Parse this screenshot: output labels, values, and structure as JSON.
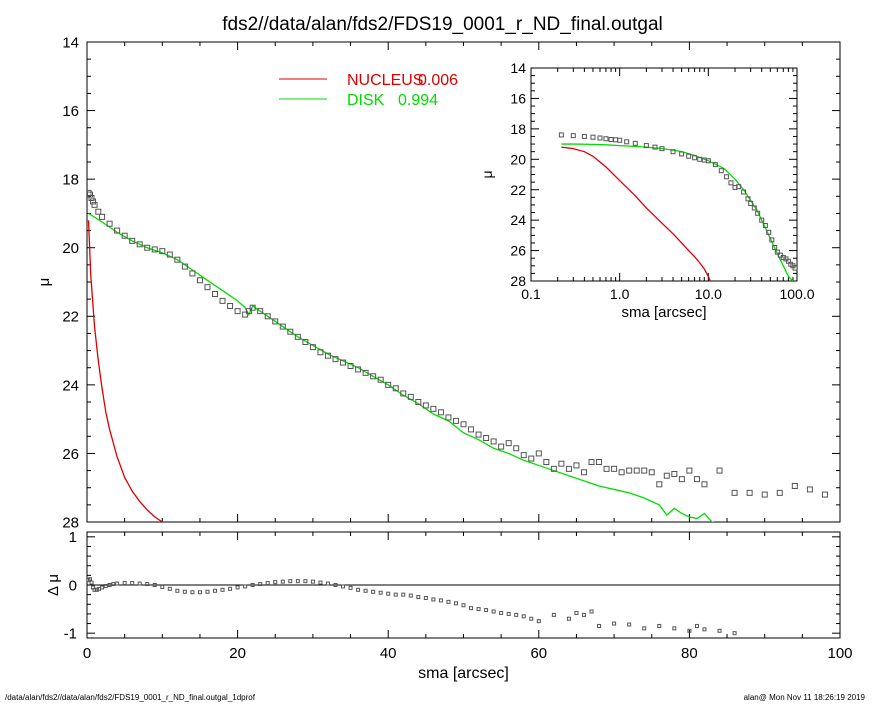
{
  "title": "fds2//data/alan/fds2/FDS19_0001_r_ND_final.outgal",
  "footer": {
    "left": "/data/alan/fds2//data/alan/fds2/FDS19_0001_r_ND_final.outgal_1dprof",
    "right": "alan@  Mon Nov 11 18:26:19 2019"
  },
  "colors": {
    "nucleus": "#dd0000",
    "disk": "#00dd00",
    "data": "#555555",
    "axis": "#000000"
  },
  "chart_data": [
    {
      "id": "main",
      "type": "line",
      "ylabel": "μ",
      "xlabel": "",
      "xlim": [
        0,
        100
      ],
      "ylim": [
        28,
        14
      ],
      "yticks": [
        14,
        16,
        18,
        20,
        22,
        24,
        26,
        28
      ],
      "legend": {
        "placement": "top-center",
        "items": [
          {
            "label": "NUCLEUS",
            "value": "0.006",
            "color": "#dd0000"
          },
          {
            "label": "DISK",
            "value": "0.994",
            "color": "#00dd00"
          }
        ]
      },
      "series": [
        {
          "name": "NUCLEUS",
          "style": "line",
          "color": "#dd0000",
          "x": [
            0.2,
            0.5,
            1,
            1.5,
            2,
            2.5,
            3,
            4,
            5,
            6,
            7,
            8,
            9,
            10,
            10.5
          ],
          "y": [
            19.2,
            20.8,
            22.3,
            23.3,
            24.1,
            24.8,
            25.3,
            26.1,
            26.7,
            27.1,
            27.4,
            27.65,
            27.85,
            28.0,
            28.05
          ]
        },
        {
          "name": "DISK",
          "style": "line",
          "color": "#00dd00",
          "x": [
            0.2,
            2,
            4,
            6,
            8,
            10,
            12,
            14,
            16,
            18,
            20,
            21,
            21.5,
            22,
            24,
            26,
            28,
            30,
            32,
            34,
            36,
            38,
            40,
            42,
            44,
            46,
            48,
            50,
            52,
            54,
            56,
            58,
            60,
            62,
            64,
            66,
            68,
            70,
            72,
            74,
            76,
            77,
            78,
            79,
            80,
            81,
            82,
            83,
            84
          ],
          "y": [
            19.0,
            19.25,
            19.55,
            19.8,
            20.0,
            20.15,
            20.35,
            20.65,
            20.95,
            21.25,
            21.55,
            21.75,
            21.95,
            21.7,
            22.0,
            22.3,
            22.6,
            22.85,
            23.1,
            23.3,
            23.5,
            23.75,
            24.0,
            24.3,
            24.55,
            24.85,
            25.05,
            25.4,
            25.6,
            25.85,
            26.0,
            26.2,
            26.35,
            26.5,
            26.65,
            26.8,
            26.95,
            27.05,
            27.15,
            27.3,
            27.5,
            27.8,
            27.6,
            27.75,
            27.85,
            27.9,
            27.75,
            28.0,
            28.05
          ]
        },
        {
          "name": "data",
          "style": "squares",
          "color": "#555555",
          "x": [
            0.2,
            0.4,
            0.6,
            0.8,
            1.0,
            1.5,
            2,
            3,
            4,
            5,
            6,
            7,
            8,
            9,
            10,
            11,
            12,
            13,
            14,
            15,
            16,
            17,
            18,
            19,
            20,
            21,
            21.5,
            22,
            23,
            24,
            25,
            26,
            27,
            28,
            29,
            30,
            31,
            32,
            33,
            34,
            35,
            36,
            37,
            38,
            39,
            40,
            41,
            42,
            43,
            44,
            45,
            46,
            47,
            48,
            49,
            50,
            51,
            52,
            53,
            54,
            55,
            56,
            57,
            58,
            59,
            60,
            61,
            62,
            63,
            64,
            65,
            66,
            67,
            68,
            69,
            70,
            71,
            72,
            73,
            74,
            75,
            76,
            77,
            78,
            79,
            80,
            81,
            82,
            84,
            86,
            88,
            90,
            92,
            94,
            96,
            98
          ],
          "y": [
            18.4,
            18.45,
            18.55,
            18.65,
            18.75,
            18.95,
            19.1,
            19.3,
            19.5,
            19.65,
            19.8,
            19.9,
            20.0,
            20.05,
            20.1,
            20.2,
            20.35,
            20.55,
            20.75,
            20.95,
            21.15,
            21.35,
            21.55,
            21.7,
            21.85,
            21.95,
            21.85,
            21.75,
            21.85,
            22.0,
            22.15,
            22.3,
            22.45,
            22.6,
            22.75,
            22.9,
            23.05,
            23.15,
            23.25,
            23.35,
            23.45,
            23.55,
            23.65,
            23.75,
            23.85,
            24.0,
            24.1,
            24.25,
            24.35,
            24.5,
            24.6,
            24.7,
            24.8,
            24.95,
            25.05,
            25.15,
            25.3,
            25.45,
            25.55,
            25.65,
            25.8,
            25.7,
            25.85,
            26.05,
            26.15,
            26.0,
            26.25,
            26.45,
            26.3,
            26.45,
            26.35,
            26.55,
            26.25,
            26.25,
            26.45,
            26.45,
            26.55,
            26.5,
            26.5,
            26.5,
            26.55,
            26.9,
            26.65,
            26.6,
            26.75,
            26.5,
            26.75,
            26.9,
            26.5,
            27.15,
            27.15,
            27.2,
            27.15,
            26.95,
            27.05,
            27.2
          ]
        }
      ]
    },
    {
      "id": "residual",
      "type": "scatter",
      "ylabel": "Δ μ",
      "xlabel": "sma [arcsec]",
      "xlim": [
        0,
        100
      ],
      "ylim": [
        -1.1,
        1.1
      ],
      "yticks": [
        1,
        0,
        -1
      ],
      "xticks": [
        0,
        20,
        40,
        60,
        80,
        100
      ],
      "reference_line": 0,
      "series": [
        {
          "name": "residual",
          "style": "squares",
          "color": "#555555",
          "x": [
            0.2,
            0.4,
            0.6,
            0.8,
            1.0,
            1.3,
            1.6,
            2.0,
            2.5,
            3,
            3.5,
            4,
            5,
            6,
            7,
            8,
            9,
            10,
            11,
            12,
            13,
            14,
            15,
            16,
            17,
            18,
            19,
            20,
            21,
            22,
            23,
            24,
            25,
            26,
            27,
            28,
            29,
            30,
            31,
            32,
            33,
            34,
            35,
            36,
            37,
            38,
            39,
            40,
            41,
            42,
            43,
            44,
            45,
            46,
            47,
            48,
            49,
            50,
            51,
            52,
            53,
            54,
            55,
            56,
            57,
            58,
            59,
            60,
            62,
            64,
            65,
            66,
            67,
            68,
            70,
            72,
            74,
            76,
            78,
            80,
            81,
            82,
            84,
            86
          ],
          "y": [
            0.1,
            0.12,
            0.05,
            -0.05,
            -0.1,
            -0.1,
            -0.08,
            -0.05,
            -0.02,
            0.0,
            0.02,
            0.03,
            0.04,
            0.04,
            0.03,
            0.02,
            0.0,
            -0.04,
            -0.08,
            -0.12,
            -0.14,
            -0.15,
            -0.15,
            -0.14,
            -0.12,
            -0.1,
            -0.08,
            -0.05,
            -0.03,
            0.0,
            0.02,
            0.04,
            0.06,
            0.07,
            0.08,
            0.08,
            0.08,
            0.07,
            0.05,
            0.03,
            0.0,
            -0.03,
            -0.06,
            -0.1,
            -0.12,
            -0.14,
            -0.16,
            -0.18,
            -0.2,
            -0.2,
            -0.22,
            -0.25,
            -0.27,
            -0.3,
            -0.32,
            -0.35,
            -0.38,
            -0.42,
            -0.48,
            -0.5,
            -0.52,
            -0.55,
            -0.58,
            -0.6,
            -0.62,
            -0.65,
            -0.7,
            -0.75,
            -0.62,
            -0.7,
            -0.58,
            -0.62,
            -0.55,
            -0.85,
            -0.8,
            -0.82,
            -0.9,
            -0.85,
            -0.9,
            -0.95,
            -0.85,
            -0.92,
            -0.95,
            -1.0
          ]
        }
      ]
    },
    {
      "id": "inset",
      "type": "line",
      "xscale": "log",
      "ylabel": "μ",
      "xlabel": "sma [arcsec]",
      "xlim": [
        0.1,
        100
      ],
      "ylim": [
        28,
        14
      ],
      "yticks": [
        14,
        16,
        18,
        20,
        22,
        24,
        26,
        28
      ],
      "xticks": [
        0.1,
        1,
        10,
        100
      ],
      "xticklabels": [
        "0.1",
        "1.0",
        "10.0",
        "100.0"
      ],
      "series": [
        {
          "name": "NUCLEUS",
          "style": "line",
          "color": "#dd0000",
          "x": [
            0.22,
            0.3,
            0.4,
            0.5,
            0.7,
            1.0,
            1.5,
            2,
            3,
            4,
            5,
            6,
            7,
            8,
            9,
            10,
            10.5
          ],
          "y": [
            19.2,
            19.3,
            19.5,
            19.8,
            20.5,
            21.4,
            22.4,
            23.2,
            24.2,
            24.9,
            25.5,
            26.0,
            26.4,
            26.8,
            27.2,
            27.7,
            28.0
          ]
        },
        {
          "name": "DISK",
          "style": "line",
          "color": "#00dd00",
          "x": [
            0.22,
            0.3,
            0.5,
            0.7,
            1.0,
            1.5,
            2,
            3,
            4,
            5,
            7,
            10,
            15,
            20,
            25,
            30,
            35,
            40,
            50,
            60,
            70,
            80,
            90
          ],
          "y": [
            19.0,
            19.0,
            19.02,
            19.05,
            19.1,
            19.15,
            19.2,
            19.3,
            19.4,
            19.5,
            19.75,
            20.1,
            20.6,
            21.3,
            22.0,
            22.7,
            23.3,
            24.0,
            25.2,
            26.2,
            27.0,
            27.7,
            28.0
          ]
        },
        {
          "name": "data",
          "style": "squares",
          "color": "#555555",
          "x": [
            0.22,
            0.3,
            0.4,
            0.5,
            0.6,
            0.7,
            0.8,
            0.9,
            1.0,
            1.2,
            1.5,
            2,
            2.5,
            3,
            4,
            5,
            6,
            7,
            8,
            9,
            10,
            12,
            14,
            16,
            18,
            20,
            22,
            25,
            28,
            30,
            33,
            36,
            40,
            44,
            48,
            52,
            56,
            60,
            65,
            70,
            75,
            80,
            85,
            90,
            95
          ],
          "y": [
            18.4,
            18.45,
            18.5,
            18.55,
            18.6,
            18.65,
            18.7,
            18.72,
            18.75,
            18.85,
            18.95,
            19.1,
            19.2,
            19.3,
            19.5,
            19.65,
            19.8,
            19.9,
            20.0,
            20.05,
            20.1,
            20.35,
            20.75,
            21.15,
            21.55,
            21.85,
            21.8,
            22.15,
            22.6,
            22.9,
            23.2,
            23.55,
            24.0,
            24.35,
            24.8,
            25.3,
            25.8,
            26.1,
            26.3,
            26.45,
            26.55,
            26.7,
            26.9,
            27.0,
            27.15
          ]
        }
      ]
    }
  ]
}
